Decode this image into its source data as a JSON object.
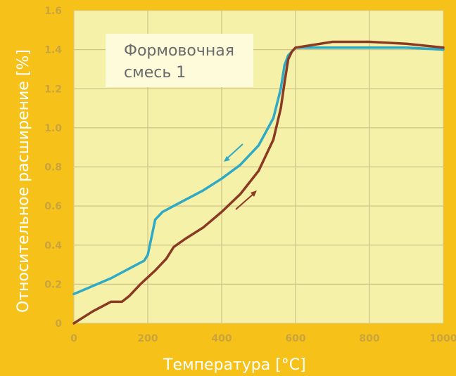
{
  "chart_data": {
    "type": "line",
    "xlabel": "Температура [°C]",
    "ylabel": "Относительное расширение [%]",
    "xlim": [
      0,
      1000
    ],
    "ylim": [
      0,
      1.6
    ],
    "grid": true,
    "x_ticks": [
      "0",
      "200",
      "400",
      "600",
      "800",
      "1000"
    ],
    "y_ticks": [
      "0",
      "0.2",
      "0.4",
      "0.6",
      "0.8",
      "1.0",
      "1.2",
      "1.4",
      "1.6"
    ],
    "annotation": [
      "Формовочная",
      "смесь 1"
    ],
    "series": [
      {
        "direction": "cooling",
        "color": "#2ea9c6",
        "x": [
          0,
          50,
          100,
          150,
          190,
          200,
          210,
          220,
          240,
          280,
          350,
          400,
          450,
          500,
          540,
          560,
          570,
          580,
          600,
          700,
          800,
          900,
          1000
        ],
        "y": [
          0.15,
          0.19,
          0.23,
          0.28,
          0.32,
          0.35,
          0.44,
          0.53,
          0.57,
          0.61,
          0.68,
          0.74,
          0.81,
          0.91,
          1.05,
          1.2,
          1.32,
          1.37,
          1.41,
          1.41,
          1.41,
          1.41,
          1.4
        ]
      },
      {
        "direction": "heating",
        "color": "#8a3a22",
        "x": [
          0,
          50,
          100,
          130,
          150,
          180,
          220,
          250,
          270,
          300,
          350,
          400,
          450,
          500,
          540,
          560,
          570,
          580,
          590,
          600,
          700,
          800,
          900,
          1000
        ],
        "y": [
          0.0,
          0.06,
          0.11,
          0.11,
          0.14,
          0.2,
          0.27,
          0.33,
          0.39,
          0.43,
          0.49,
          0.57,
          0.66,
          0.78,
          0.94,
          1.1,
          1.23,
          1.35,
          1.39,
          1.41,
          1.44,
          1.44,
          1.43,
          1.41
        ]
      }
    ]
  }
}
